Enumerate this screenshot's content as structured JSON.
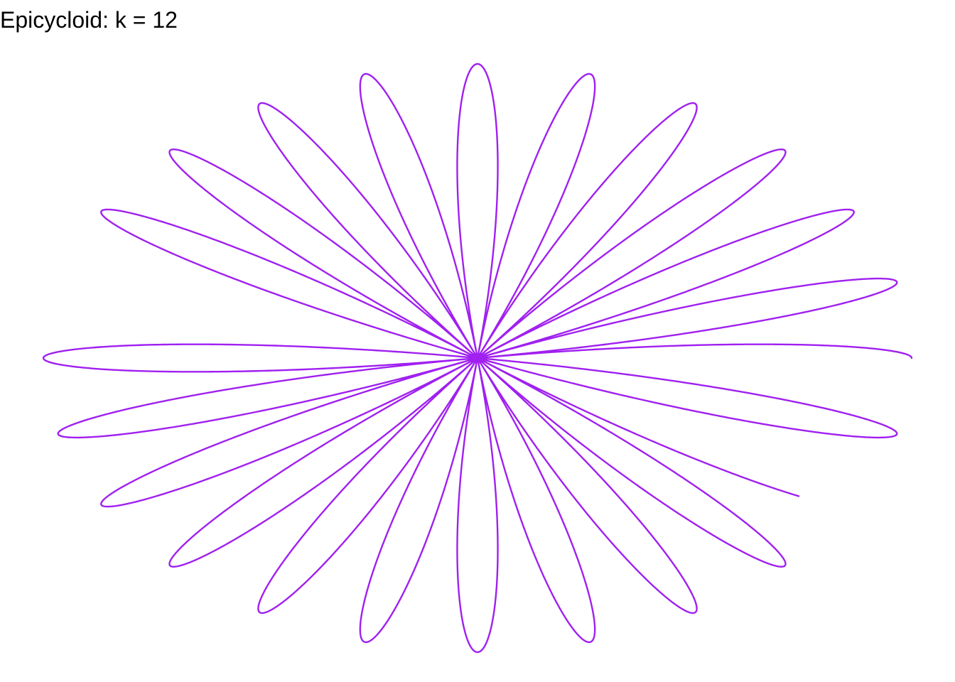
{
  "chart_data": {
    "type": "line",
    "title": "Epicycloid: k = 12",
    "subtitle": "",
    "xlabel": "",
    "ylabel": "",
    "curve": "rose",
    "k": 12,
    "petals": 24,
    "radius": 1,
    "theta_start_turns": 0,
    "theta_end_turns": 0.91,
    "axes_visible": false,
    "grid": false,
    "legend": "none",
    "xlim": [
      -1,
      1
    ],
    "ylim": [
      -1,
      1
    ],
    "series": [
      {
        "color": "#a020f0"
      }
    ]
  }
}
